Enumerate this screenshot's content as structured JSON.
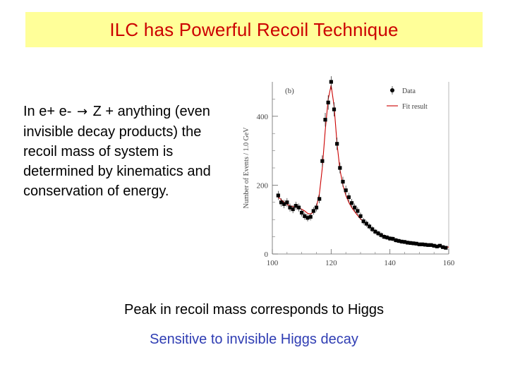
{
  "title": "ILC has Powerful Recoil Technique",
  "body": {
    "line1_before": "In e+ e-",
    "arrow_glyph": "→",
    "line1_after": "Z + anything",
    "rest": "(even invisible decay products) the recoil mass of system is determined by kinematics and conservation of energy."
  },
  "captions": {
    "peak": "Peak in recoil mass corresponds to Higgs",
    "sensitive": "Sensitive to invisible Higgs decay"
  },
  "colors": {
    "title_text": "#cc0000",
    "title_bg": "#ffff99",
    "caption_blue": "#2f3db3",
    "fit_line": "#cc0000",
    "data_marker": "#000000"
  },
  "chart_data": {
    "type": "scatter",
    "panel_label": "(b)",
    "xlabel": "",
    "ylabel": "Number of Events / 1.0 GeV",
    "xlim": [
      100,
      160
    ],
    "ylim": [
      0,
      500
    ],
    "xticks": [
      100,
      120,
      140,
      160
    ],
    "yticks": [
      0,
      200,
      400
    ],
    "legend": {
      "placement": "top-right",
      "entries": [
        "Data",
        "Fit result"
      ]
    },
    "series": [
      {
        "name": "Data",
        "x": [
          102,
          103,
          104,
          105,
          106,
          107,
          108,
          109,
          110,
          111,
          112,
          113,
          114,
          115,
          116,
          117,
          118,
          119,
          120,
          121,
          122,
          123,
          124,
          125,
          126,
          127,
          128,
          129,
          130,
          131,
          132,
          133,
          134,
          135,
          136,
          137,
          138,
          139,
          140,
          141,
          142,
          143,
          144,
          145,
          146,
          147,
          148,
          149,
          150,
          151,
          152,
          153,
          154,
          155,
          156,
          157,
          158,
          159
        ],
        "y": [
          170,
          150,
          145,
          150,
          135,
          130,
          140,
          135,
          120,
          110,
          105,
          108,
          125,
          135,
          160,
          270,
          390,
          440,
          500,
          420,
          320,
          250,
          210,
          185,
          165,
          148,
          135,
          125,
          110,
          95,
          88,
          80,
          72,
          65,
          60,
          55,
          50,
          48,
          45,
          44,
          40,
          38,
          36,
          35,
          33,
          32,
          31,
          30,
          28,
          28,
          27,
          26,
          26,
          24,
          22,
          24,
          20,
          18
        ]
      },
      {
        "name": "Fit result",
        "type": "line",
        "x": [
          102,
          103,
          104,
          105,
          106,
          107,
          108,
          109,
          110,
          111,
          112,
          113,
          114,
          115,
          116,
          117,
          118,
          119,
          120,
          121,
          122,
          123,
          124,
          125,
          126,
          127,
          128,
          129,
          130,
          132,
          134,
          136,
          138,
          140,
          142,
          144,
          146,
          148,
          150,
          152,
          154,
          156,
          158,
          160
        ],
        "y": [
          165,
          158,
          150,
          144,
          140,
          138,
          136,
          134,
          130,
          125,
          118,
          116,
          122,
          138,
          175,
          250,
          360,
          450,
          490,
          430,
          320,
          245,
          200,
          170,
          150,
          135,
          123,
          112,
          102,
          86,
          72,
          61,
          53,
          46,
          41,
          37,
          34,
          31,
          29,
          27,
          25,
          23,
          21,
          20
        ]
      }
    ]
  }
}
